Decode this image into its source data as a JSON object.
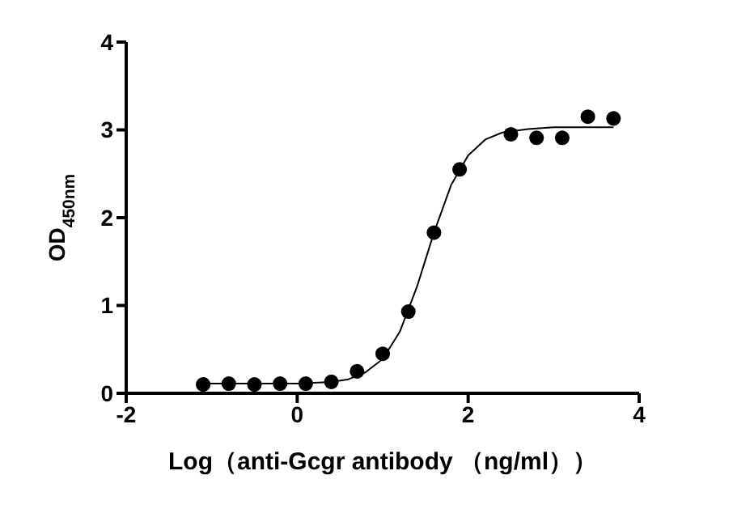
{
  "chart_data": {
    "type": "scatter",
    "xlabel": "Log（anti-Gcgr antibody （ng/ml））",
    "ylabel": "OD$_{450nm}$",
    "xlim": [
      -2,
      4
    ],
    "xticks": [
      -2,
      0,
      2,
      4
    ],
    "ylim": [
      0,
      4
    ],
    "yticks": [
      0,
      1,
      2,
      3,
      4
    ],
    "series": [
      {
        "color": "#000000",
        "marker": "circle",
        "x": [
          -1.1,
          -0.8,
          -0.5,
          -0.2,
          0.1,
          0.4,
          0.7,
          1.0,
          1.3,
          1.6,
          1.9,
          2.5,
          2.8,
          3.1,
          3.4,
          3.7
        ],
        "values": [
          0.1,
          0.11,
          0.1,
          0.11,
          0.11,
          0.13,
          0.25,
          0.45,
          0.93,
          1.83,
          2.55,
          2.95,
          2.91,
          2.91,
          3.15,
          3.13
        ]
      },
      {
        "type": "line",
        "color": "#000000",
        "marker": "none",
        "line_style": "solid",
        "x": [
          -1.1,
          0,
          0.4,
          0.6,
          0.8,
          1.0,
          1.2,
          1.4,
          1.5,
          1.6,
          1.8,
          2.0,
          2.2,
          2.4,
          2.7,
          3.0,
          3.7
        ],
        "values": [
          0.11,
          0.11,
          0.13,
          0.16,
          0.24,
          0.39,
          0.7,
          1.21,
          1.52,
          1.83,
          2.37,
          2.71,
          2.89,
          2.97,
          3.01,
          3.03,
          3.03
        ]
      }
    ]
  }
}
